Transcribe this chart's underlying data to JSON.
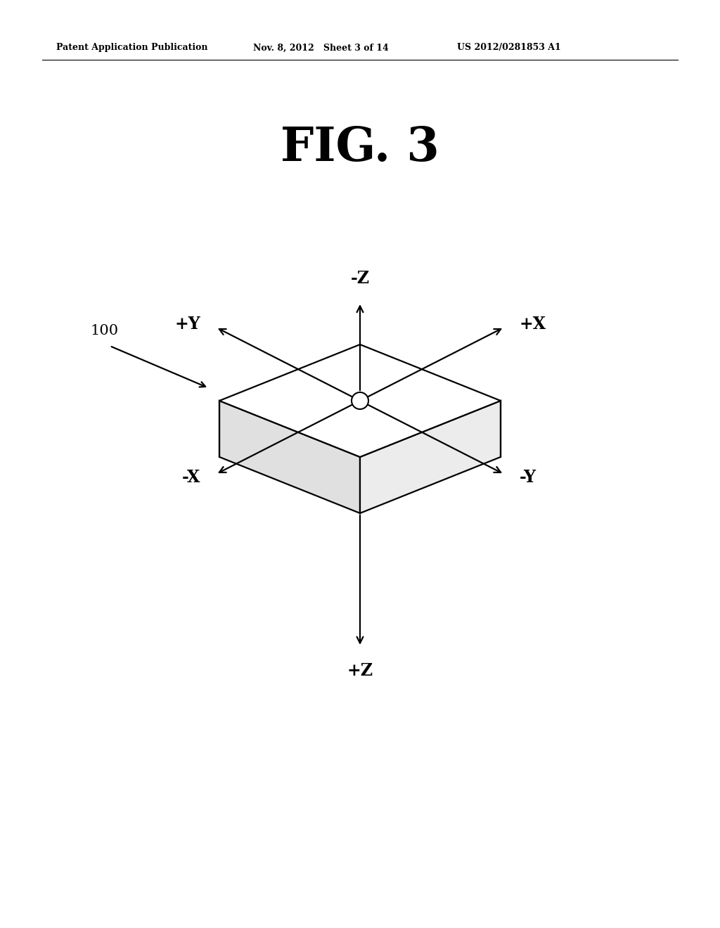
{
  "background_color": "#ffffff",
  "fig_width": 10.24,
  "fig_height": 13.2,
  "header_left": "Patent Application Publication",
  "header_center": "Nov. 8, 2012   Sheet 3 of 14",
  "header_right": "US 2012/0281853 A1",
  "fig_label": "FIG. 3",
  "label_100": "100",
  "label_neg_z": "-Z",
  "label_pos_z": "+Z",
  "label_pos_x": "+X",
  "label_neg_x": "-X",
  "label_pos_y": "+Y",
  "label_neg_y": "-Y",
  "lw": 1.6,
  "color": "#000000",
  "header_fontsize": 9,
  "fig_label_fontsize": 48,
  "axis_label_fontsize": 17,
  "ref_label_fontsize": 15
}
